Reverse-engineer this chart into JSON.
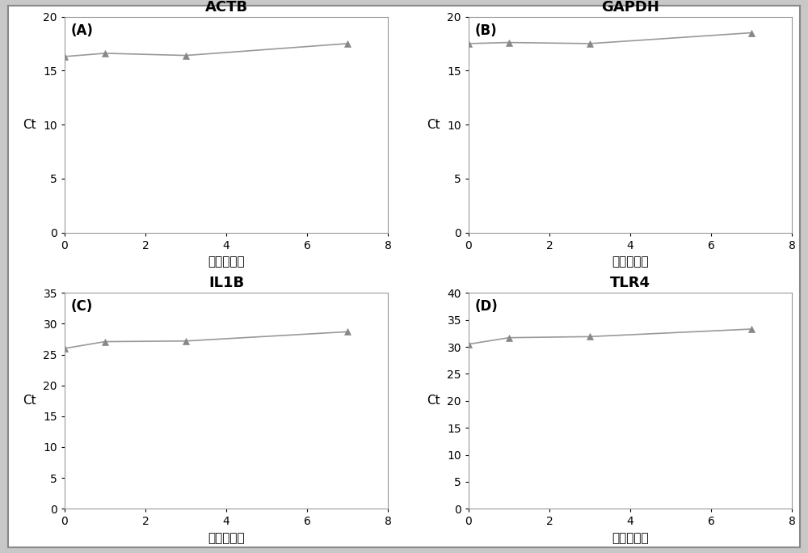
{
  "subplots": [
    {
      "label": "(A)",
      "title": "ACTB",
      "x": [
        0,
        1,
        3,
        7
      ],
      "y": [
        16.3,
        16.6,
        16.4,
        17.5
      ],
      "ylim": [
        0,
        20
      ],
      "yticks": [
        0,
        5,
        10,
        15,
        20
      ],
      "xlim": [
        0,
        8
      ],
      "xticks": [
        0,
        2,
        4,
        6,
        8
      ]
    },
    {
      "label": "(B)",
      "title": "GAPDH",
      "x": [
        0,
        1,
        3,
        7
      ],
      "y": [
        17.5,
        17.6,
        17.5,
        18.5
      ],
      "ylim": [
        0,
        20
      ],
      "yticks": [
        0,
        5,
        10,
        15,
        20
      ],
      "xlim": [
        0,
        8
      ],
      "xticks": [
        0,
        2,
        4,
        6,
        8
      ]
    },
    {
      "label": "(C)",
      "title": "IL1B",
      "x": [
        0,
        1,
        3,
        7
      ],
      "y": [
        26.0,
        27.1,
        27.2,
        28.7
      ],
      "ylim": [
        0,
        35
      ],
      "yticks": [
        0,
        5,
        10,
        15,
        20,
        25,
        30,
        35
      ],
      "xlim": [
        0,
        8
      ],
      "xticks": [
        0,
        2,
        4,
        6,
        8
      ]
    },
    {
      "label": "(D)",
      "title": "TLR4",
      "x": [
        0,
        1,
        3,
        7
      ],
      "y": [
        30.5,
        31.7,
        31.9,
        33.3
      ],
      "ylim": [
        0,
        40
      ],
      "yticks": [
        0,
        5,
        10,
        15,
        20,
        25,
        30,
        35,
        40
      ],
      "xlim": [
        0,
        8
      ],
      "xticks": [
        0,
        2,
        4,
        6,
        8
      ]
    }
  ],
  "line_color": "#999999",
  "marker_color": "#888888",
  "marker": "^",
  "markersize": 6,
  "linewidth": 1.2,
  "xlabel_zh": "时间（天）",
  "ylabel": "Ct",
  "title_fontsize": 13,
  "label_fontsize": 11,
  "panel_label_fontsize": 12,
  "tick_fontsize": 10,
  "figure_bg": "#c8c8c8",
  "axes_bg": "white",
  "spine_color": "#999999",
  "outer_border_color": "#555555"
}
